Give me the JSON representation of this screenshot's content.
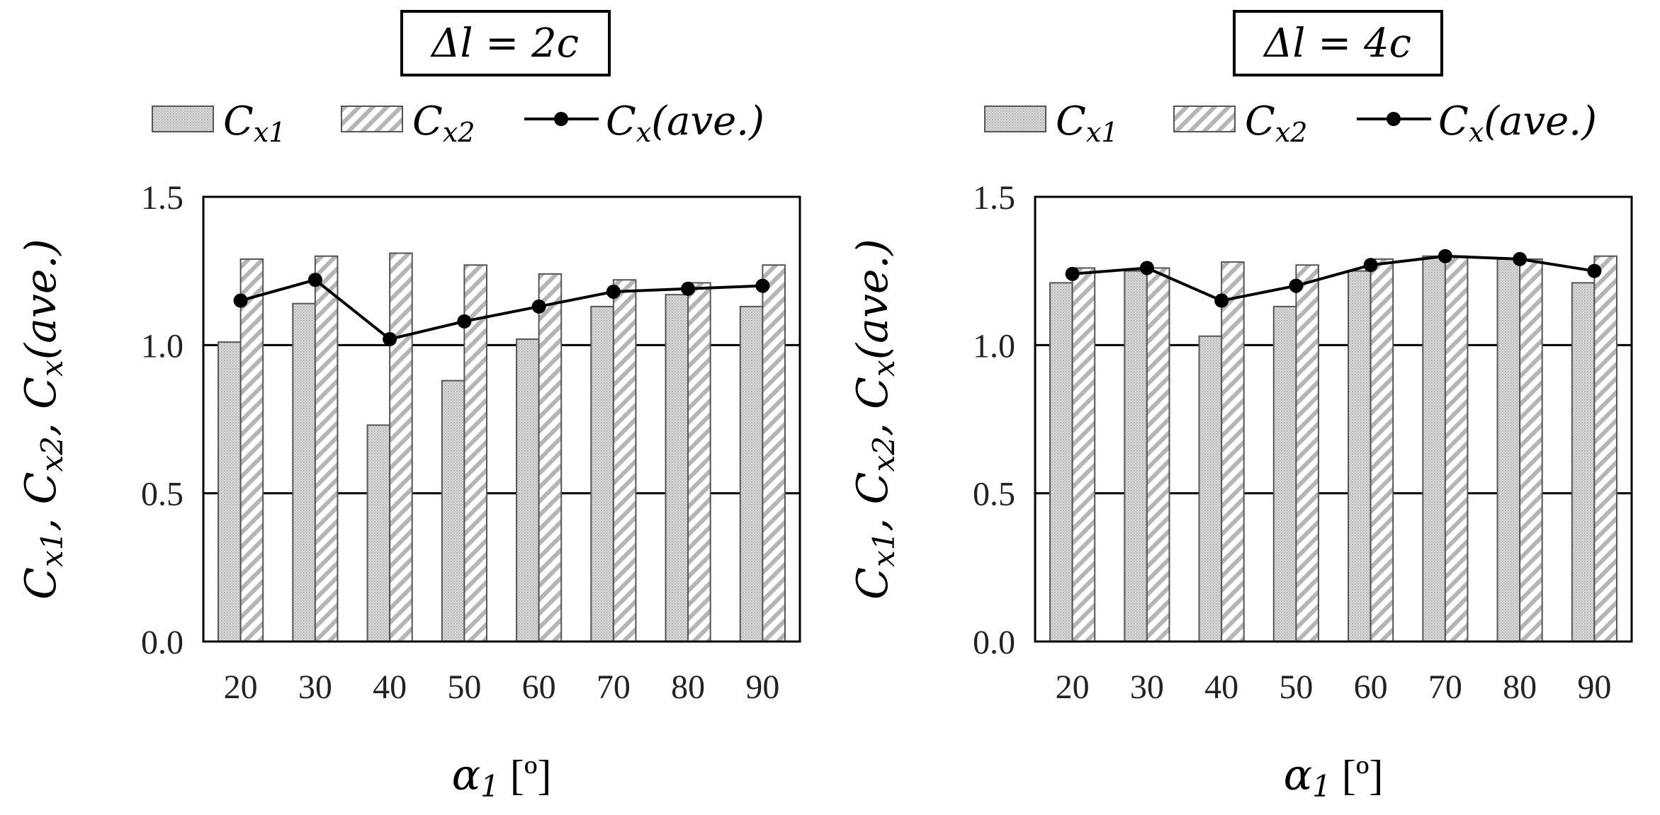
{
  "chart_data": [
    {
      "type": "bar",
      "title": "Δl = 2c",
      "categories": [
        "20",
        "30",
        "40",
        "50",
        "60",
        "70",
        "80",
        "90"
      ],
      "series": [
        {
          "name": "Cx1",
          "kind": "bar",
          "pattern": "dotted",
          "values": [
            1.01,
            1.14,
            0.73,
            0.88,
            1.02,
            1.13,
            1.17,
            1.13
          ]
        },
        {
          "name": "Cx2",
          "kind": "bar",
          "pattern": "hatched",
          "values": [
            1.29,
            1.3,
            1.31,
            1.27,
            1.24,
            1.22,
            1.21,
            1.27
          ]
        },
        {
          "name": "Cx(ave.)",
          "kind": "line",
          "values": [
            1.15,
            1.22,
            1.02,
            1.08,
            1.13,
            1.18,
            1.19,
            1.2
          ]
        }
      ],
      "xlabel": "α1 [º]",
      "ylabel": "Cx1, Cx2, Cx(ave.)",
      "ylim": [
        0,
        1.5
      ],
      "yticks": [
        "0.0",
        "0.5",
        "1.0",
        "1.5"
      ],
      "grid": "horizontal"
    },
    {
      "type": "bar",
      "title": "Δl = 4c",
      "categories": [
        "20",
        "30",
        "40",
        "50",
        "60",
        "70",
        "80",
        "90"
      ],
      "series": [
        {
          "name": "Cx1",
          "kind": "bar",
          "pattern": "dotted",
          "values": [
            1.21,
            1.25,
            1.03,
            1.13,
            1.25,
            1.3,
            1.29,
            1.21
          ]
        },
        {
          "name": "Cx2",
          "kind": "bar",
          "pattern": "hatched",
          "values": [
            1.26,
            1.26,
            1.28,
            1.27,
            1.29,
            1.3,
            1.29,
            1.3
          ]
        },
        {
          "name": "Cx(ave.)",
          "kind": "line",
          "values": [
            1.24,
            1.26,
            1.15,
            1.2,
            1.27,
            1.3,
            1.29,
            1.25
          ]
        }
      ],
      "xlabel": "α1 [º]",
      "ylabel": "Cx1, Cx2, Cx(ave.)",
      "ylim": [
        0,
        1.5
      ],
      "yticks": [
        "0.0",
        "0.5",
        "1.0",
        "1.5"
      ],
      "grid": "horizontal"
    }
  ],
  "legend": {
    "cx1": "C",
    "cx1_sub": "x1",
    "cx2": "C",
    "cx2_sub": "x2",
    "ave": "C",
    "ave_sub": "x",
    "ave_tail": "(ave.)"
  }
}
